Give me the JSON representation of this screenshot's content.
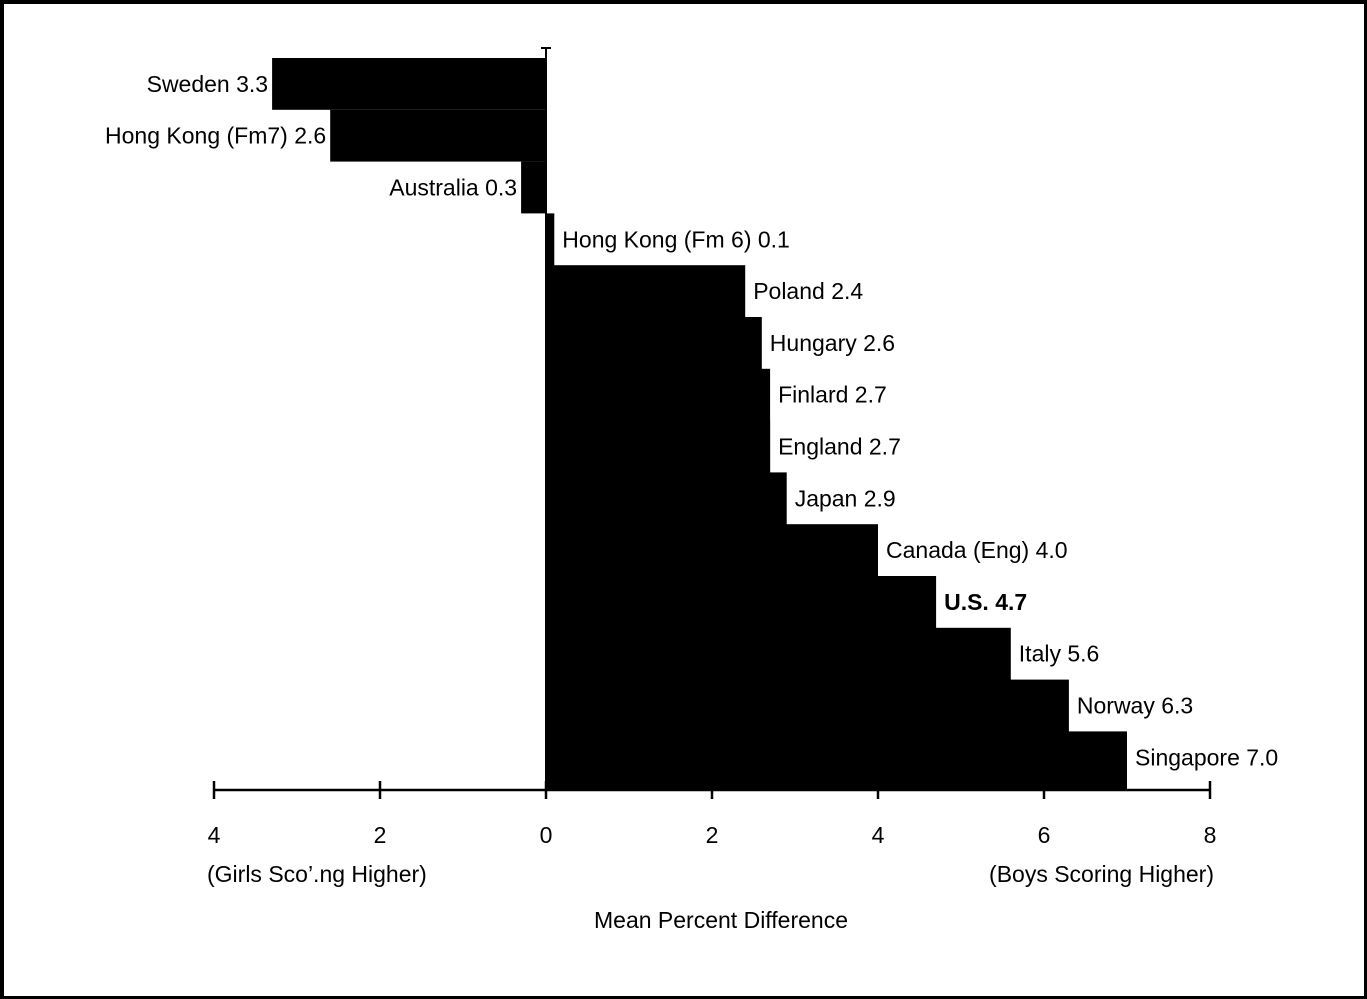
{
  "chart_data": {
    "type": "bar",
    "orientation": "horizontal",
    "categories": [
      "Sweden",
      "Hong Kong (Fm7)",
      "Australia",
      "Hong Kong (Fm 6)",
      "Poland",
      "Hungary",
      "Finlard",
      "England",
      "Japan",
      "Canada (Eng)",
      "U.S.",
      "Italy",
      "Norway",
      "Singapore"
    ],
    "values": [
      -3.3,
      -2.6,
      -0.3,
      0.1,
      2.4,
      2.6,
      2.7,
      2.7,
      2.9,
      4.0,
      4.7,
      5.6,
      6.3,
      7.0
    ],
    "value_labels": [
      "3.3",
      "2.6",
      "0.3",
      "0.1",
      "2.4",
      "2.6",
      "2.7",
      "2.7",
      "2.9",
      "4.0",
      "4.7",
      "5.6",
      "6.3",
      "7.0"
    ],
    "highlight_index": 10,
    "xlim": [
      -4,
      8
    ],
    "x_ticks": [
      -4,
      -2,
      0,
      2,
      4,
      6,
      8
    ],
    "x_tick_labels": [
      "4",
      "2",
      "0",
      "2",
      "4",
      "6",
      "8"
    ],
    "x_sublabel_left": "(Girls Sco’.ng Higher)",
    "x_sublabel_right": "(Boys Scoring Higher)",
    "xlabel": "Mean Percent Difference",
    "colors": {
      "bar": "#000000",
      "background": "#ffffff"
    }
  }
}
